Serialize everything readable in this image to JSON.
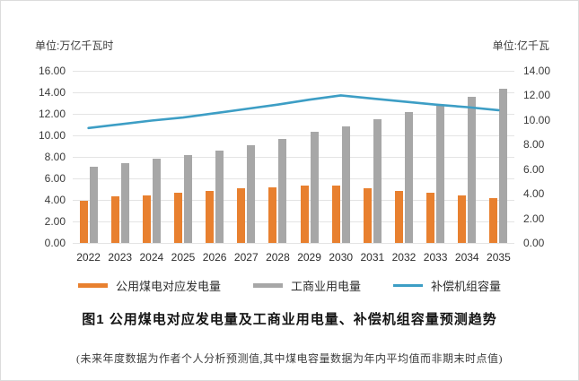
{
  "chart_data": {
    "type": "bar",
    "subtype": "bar-and-line-combo",
    "categories": [
      "2022",
      "2023",
      "2024",
      "2025",
      "2026",
      "2027",
      "2028",
      "2029",
      "2030",
      "2031",
      "2032",
      "2033",
      "2034",
      "2035"
    ],
    "series": [
      {
        "name": "公用煤电对应发电量",
        "type": "bar",
        "axis": "left",
        "color": "#E8802F",
        "values": [
          3.95,
          4.35,
          4.45,
          4.65,
          4.85,
          5.05,
          5.2,
          5.3,
          5.3,
          5.1,
          4.8,
          4.65,
          4.45,
          4.2
        ]
      },
      {
        "name": "工商业用电量",
        "type": "bar",
        "axis": "left",
        "color": "#A7A7A7",
        "values": [
          7.1,
          7.45,
          7.8,
          8.2,
          8.6,
          9.1,
          9.65,
          10.3,
          10.85,
          11.5,
          12.2,
          12.75,
          13.55,
          14.3
        ]
      },
      {
        "name": "补偿机组容量",
        "type": "line",
        "axis": "right",
        "color": "#3D9EC5",
        "values": [
          9.35,
          9.65,
          9.95,
          10.2,
          10.55,
          10.9,
          11.25,
          11.65,
          12.0,
          11.75,
          11.5,
          11.25,
          11.05,
          10.8
        ]
      }
    ],
    "left_axis": {
      "unit": "单位:万亿千瓦时",
      "min": 0,
      "max": 16,
      "step": 2,
      "ticks": [
        "16.00",
        "14.00",
        "12.00",
        "10.00",
        "8.00",
        "6.00",
        "4.00",
        "2.00",
        "0.00"
      ]
    },
    "right_axis": {
      "unit": "单位:亿千瓦",
      "min": 0,
      "max": 14,
      "step": 2,
      "ticks": [
        "14.00",
        "12.00",
        "10.00",
        "8.00",
        "6.00",
        "4.00",
        "2.00",
        "0.00"
      ]
    },
    "title": "图1  公用煤电对应发电量及工商业用电量、补偿机组容量预测趋势",
    "footnote": "(未来年度数据为作者个人分析预测值,其中煤电容量数据为年内平均值而非期末时点值)",
    "legend_position": "bottom",
    "grid": true
  }
}
